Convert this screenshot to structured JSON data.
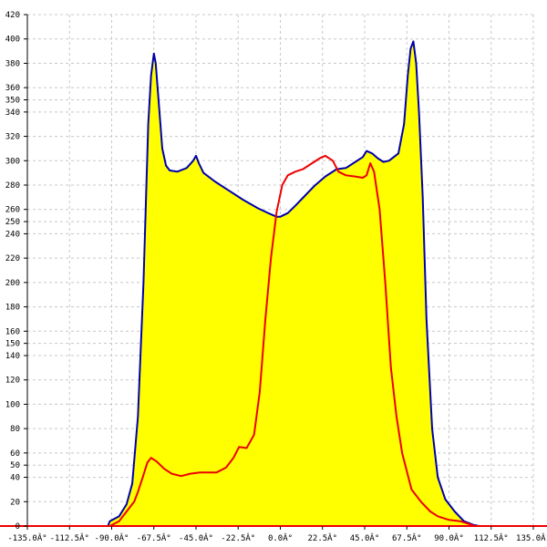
{
  "chart_data": {
    "type": "area",
    "title": "",
    "xlabel": "",
    "ylabel": "",
    "xlim": [
      -135,
      135
    ],
    "ylim": [
      0,
      420
    ],
    "grid": true,
    "legend": "none",
    "x_ticks": [
      -135,
      -112.5,
      -90,
      -67.5,
      -45,
      -22.5,
      0,
      22.5,
      45,
      67.5,
      90,
      112.5,
      135
    ],
    "x_tick_labels": [
      "-135.0Â°",
      "-112.5Â°",
      "-90.0Â°",
      "-67.5Â°",
      "-45.0Â°",
      "-22.5Â°",
      "0.0Â°",
      "22.5Â°",
      "45.0Â°",
      "67.5Â°",
      "90.0Â°",
      "112.5Â°",
      "135.0Â°"
    ],
    "y_ticks": [
      0,
      20,
      40,
      50,
      60,
      80,
      100,
      120,
      140,
      150,
      160,
      180,
      200,
      220,
      240,
      250,
      260,
      280,
      300,
      320,
      340,
      350,
      360,
      380,
      400,
      420
    ],
    "y_tick_labels": [
      "0",
      "20",
      "40",
      "50",
      "60",
      "80",
      "100",
      "120",
      "140",
      "150",
      "160",
      "180",
      "200",
      "220",
      "240",
      "250",
      "260",
      "280",
      "300",
      "320",
      "340",
      "350",
      "360",
      "380",
      "400",
      "420"
    ],
    "series": [
      {
        "color": "#0000aa",
        "fill": "#ffff00",
        "points": [
          [
            -92,
            0
          ],
          [
            -91,
            4
          ],
          [
            -86,
            8
          ],
          [
            -82,
            18
          ],
          [
            -79,
            35
          ],
          [
            -76,
            90
          ],
          [
            -73,
            200
          ],
          [
            -70.5,
            330
          ],
          [
            -69,
            370
          ],
          [
            -67.5,
            388
          ],
          [
            -66.5,
            380
          ],
          [
            -65,
            350
          ],
          [
            -63,
            310
          ],
          [
            -61,
            296
          ],
          [
            -59,
            292
          ],
          [
            -55,
            291
          ],
          [
            -50,
            294
          ],
          [
            -46.5,
            300
          ],
          [
            -45,
            304
          ],
          [
            -43.5,
            298
          ],
          [
            -41,
            290
          ],
          [
            -35,
            283
          ],
          [
            -28,
            276
          ],
          [
            -20,
            268
          ],
          [
            -12,
            261
          ],
          [
            -5,
            256
          ],
          [
            -2,
            254
          ],
          [
            0,
            254
          ],
          [
            4,
            257
          ],
          [
            8,
            263
          ],
          [
            13,
            271
          ],
          [
            18,
            279
          ],
          [
            24,
            287
          ],
          [
            30,
            293
          ],
          [
            35,
            294
          ],
          [
            40,
            299
          ],
          [
            44,
            303
          ],
          [
            46,
            308
          ],
          [
            49,
            306
          ],
          [
            52,
            302
          ],
          [
            55,
            299
          ],
          [
            58,
            300
          ],
          [
            63,
            306
          ],
          [
            66,
            330
          ],
          [
            68,
            370
          ],
          [
            69.5,
            392
          ],
          [
            71,
            398
          ],
          [
            72.5,
            380
          ],
          [
            74,
            340
          ],
          [
            76,
            270
          ],
          [
            78,
            170
          ],
          [
            81,
            80
          ],
          [
            84,
            40
          ],
          [
            88,
            22
          ],
          [
            93,
            12
          ],
          [
            98,
            4
          ],
          [
            103,
            1
          ],
          [
            106,
            0
          ]
        ]
      },
      {
        "color": "#ee0000",
        "fill": "none",
        "points": [
          [
            -91,
            0
          ],
          [
            -86,
            4
          ],
          [
            -82,
            12
          ],
          [
            -78,
            20
          ],
          [
            -76,
            28
          ],
          [
            -73,
            42
          ],
          [
            -71,
            52
          ],
          [
            -69,
            56
          ],
          [
            -66,
            53
          ],
          [
            -62,
            47
          ],
          [
            -58,
            43
          ],
          [
            -53,
            41
          ],
          [
            -48,
            43
          ],
          [
            -43,
            44
          ],
          [
            -34,
            44
          ],
          [
            -29,
            48
          ],
          [
            -25,
            56
          ],
          [
            -22,
            65
          ],
          [
            -18,
            64
          ],
          [
            -14,
            75
          ],
          [
            -11,
            110
          ],
          [
            -8,
            170
          ],
          [
            -5,
            220
          ],
          [
            -2,
            258
          ],
          [
            1,
            280
          ],
          [
            4,
            288
          ],
          [
            8,
            291
          ],
          [
            12,
            293
          ],
          [
            17,
            298
          ],
          [
            21,
            302
          ],
          [
            24,
            304
          ],
          [
            28,
            300
          ],
          [
            31,
            291
          ],
          [
            35,
            288
          ],
          [
            40,
            287
          ],
          [
            44,
            286
          ],
          [
            46,
            288
          ],
          [
            48,
            298
          ],
          [
            50,
            291
          ],
          [
            53,
            260
          ],
          [
            56,
            200
          ],
          [
            59,
            130
          ],
          [
            62,
            90
          ],
          [
            65,
            60
          ],
          [
            70,
            30
          ],
          [
            75,
            20
          ],
          [
            80,
            12
          ],
          [
            84,
            8
          ],
          [
            90,
            5
          ],
          [
            96,
            4
          ],
          [
            100,
            2
          ],
          [
            104,
            0
          ]
        ]
      }
    ]
  }
}
